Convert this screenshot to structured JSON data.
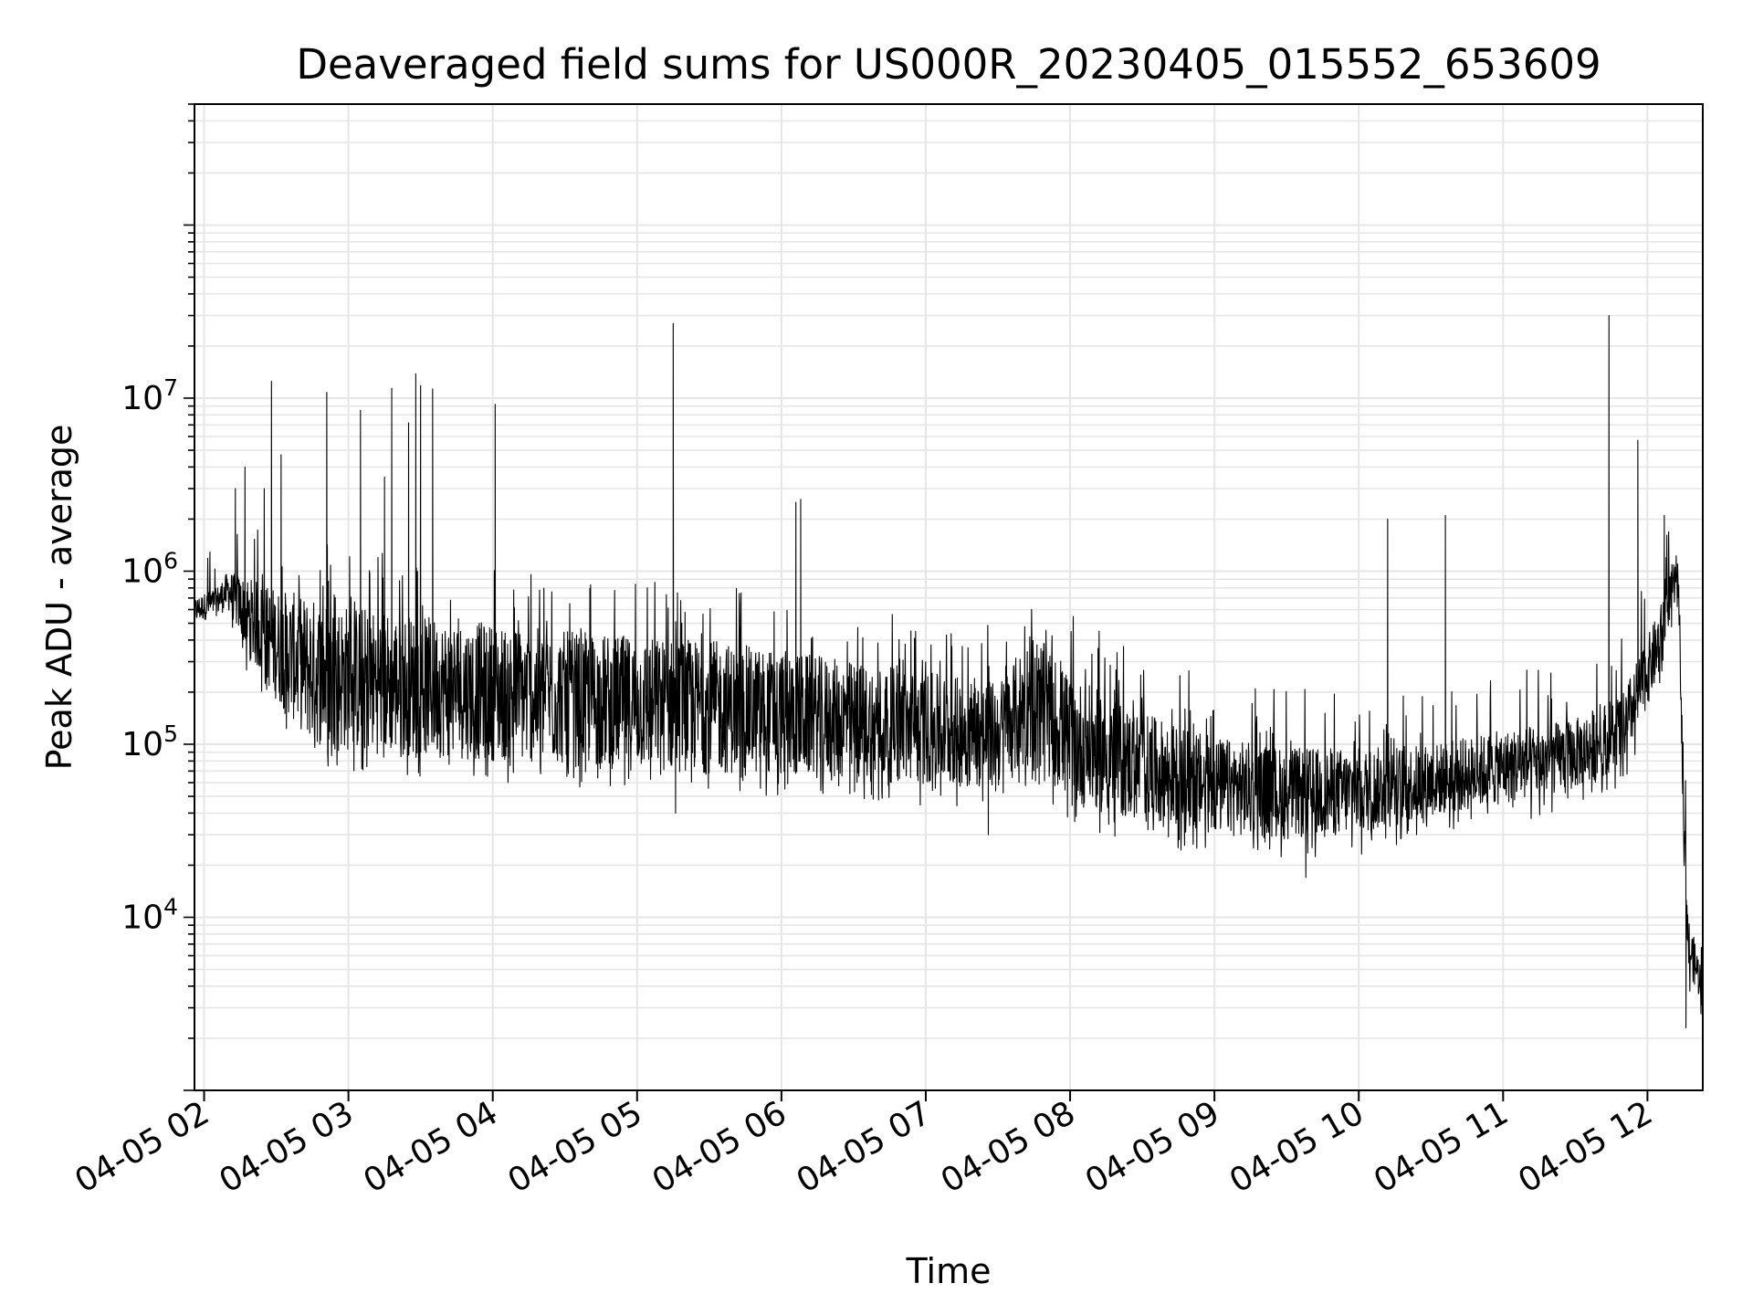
{
  "chart_data": {
    "type": "line",
    "title": "Deaveraged field sums for US000R_20230405_015552_653609",
    "xlabel": "Time",
    "ylabel": "Peak ADU - average",
    "y_scale": "log",
    "ylim": [
      1000,
      500000000
    ],
    "xlim": [
      "2023-04-05 01:56",
      "2023-04-05 12:23"
    ],
    "x_ticks": [
      "04-05 02",
      "04-05 03",
      "04-05 04",
      "04-05 05",
      "04-05 06",
      "04-05 07",
      "04-05 08",
      "04-05 09",
      "04-05 10",
      "04-05 11",
      "04-05 12"
    ],
    "y_ticks": [
      {
        "base": "10",
        "exp": "4",
        "value": 10000
      },
      {
        "base": "10",
        "exp": "5",
        "value": 100000
      },
      {
        "base": "10",
        "exp": "6",
        "value": 1000000
      },
      {
        "base": "10",
        "exp": "7",
        "value": 10000000
      }
    ],
    "grid": true,
    "grid_minor": true,
    "line_color": "#000000",
    "grid_color": "#e6e6e6",
    "envelope": {
      "time": [
        "01:56",
        "02:05",
        "02:10",
        "02:20",
        "02:30",
        "02:45",
        "03:00",
        "03:30",
        "04:00",
        "04:30",
        "05:00",
        "05:30",
        "06:00",
        "06:30",
        "07:00",
        "07:30",
        "07:45",
        "08:00",
        "08:30",
        "09:00",
        "09:30",
        "10:00",
        "10:30",
        "11:00",
        "11:30",
        "11:50",
        "12:05",
        "12:10",
        "12:13",
        "12:15",
        "12:17",
        "12:23"
      ],
      "upper": [
        700000,
        800000,
        1000000,
        900000,
        800000,
        700000,
        650000,
        550000,
        500000,
        450000,
        420000,
        400000,
        350000,
        300000,
        260000,
        230000,
        450000,
        250000,
        150000,
        110000,
        95000,
        95000,
        100000,
        120000,
        140000,
        200000,
        600000,
        1100000,
        1100000,
        60000,
        10000,
        5000
      ],
      "lower": [
        500000,
        550000,
        600000,
        300000,
        180000,
        100000,
        90000,
        85000,
        80000,
        75000,
        70000,
        68000,
        65000,
        62000,
        58000,
        55000,
        80000,
        45000,
        35000,
        30000,
        28000,
        30000,
        38000,
        45000,
        55000,
        75000,
        250000,
        600000,
        600000,
        30000,
        5000,
        3000
      ]
    },
    "spikes": [
      {
        "time": "02:13",
        "value": 3000000
      },
      {
        "time": "02:17",
        "value": 4000000
      },
      {
        "time": "02:25",
        "value": 3000000
      },
      {
        "time": "02:28",
        "value": 12500000
      },
      {
        "time": "02:32",
        "value": 4700000
      },
      {
        "time": "02:51",
        "value": 10800000
      },
      {
        "time": "03:05",
        "value": 8500000
      },
      {
        "time": "03:15",
        "value": 3500000
      },
      {
        "time": "03:18",
        "value": 11400000
      },
      {
        "time": "03:25",
        "value": 7200000
      },
      {
        "time": "03:30",
        "value": 11800000
      },
      {
        "time": "03:28",
        "value": 13800000
      },
      {
        "time": "03:35",
        "value": 11300000
      },
      {
        "time": "04:01",
        "value": 9200000
      },
      {
        "time": "05:15",
        "value": 27000000
      },
      {
        "time": "06:06",
        "value": 2500000
      },
      {
        "time": "06:08",
        "value": 2600000
      },
      {
        "time": "10:12",
        "value": 2000000
      },
      {
        "time": "10:36",
        "value": 2100000
      },
      {
        "time": "11:44",
        "value": 30000000
      },
      {
        "time": "11:56",
        "value": 5700000
      },
      {
        "time": "12:07",
        "value": 2100000
      }
    ],
    "dips": [
      {
        "time": "05:16",
        "value": 40000
      },
      {
        "time": "07:26",
        "value": 30000
      },
      {
        "time": "09:38",
        "value": 17000
      },
      {
        "time": "12:16",
        "value": 2300
      }
    ]
  }
}
